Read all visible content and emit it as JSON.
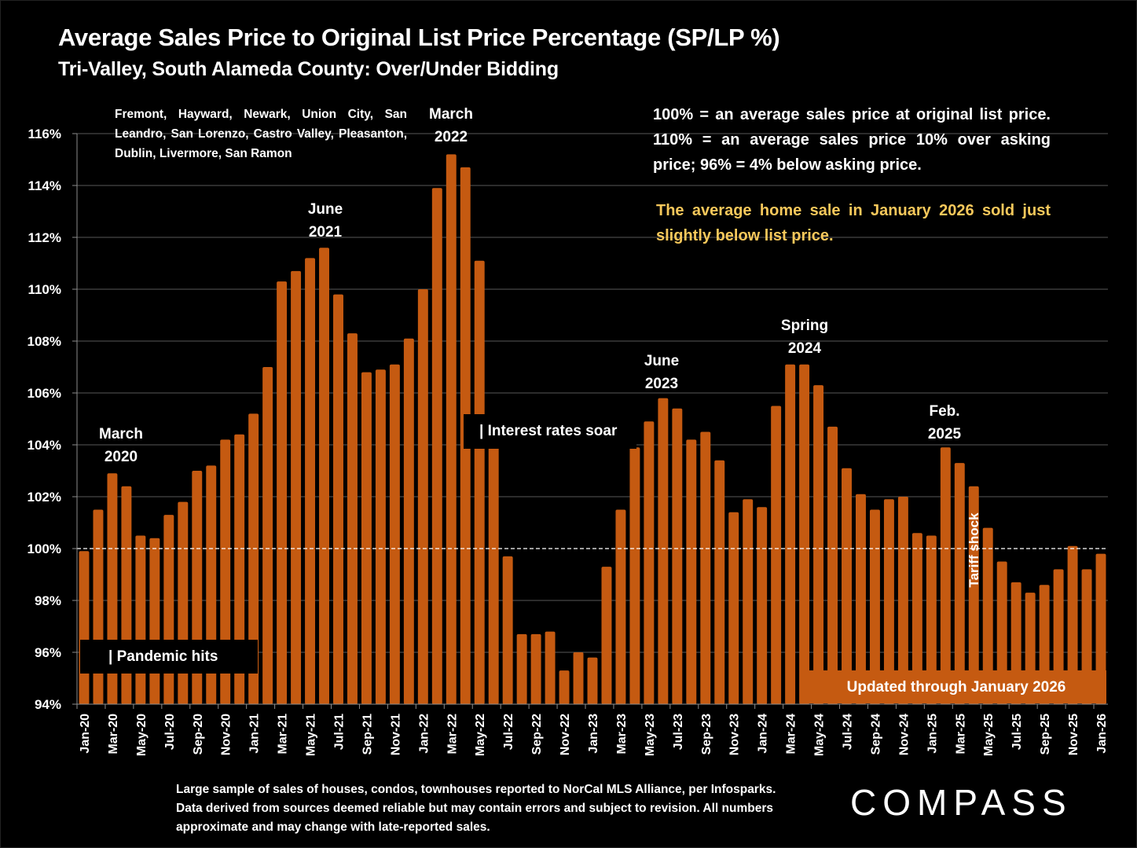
{
  "title": "Average Sales Price to Original List Price Percentage (SP/LP %)",
  "subtitle": "Tri-Valley, South Alameda County:  Over/Under Bidding",
  "cities_note": "Fremont, Hayward, Newark, Union City, San Leandro, San Lorenzo, Castro Valley, Pleasanton, Dublin, Livermore, San Ramon",
  "explanation": "100% = an average sales price at original list price. 110% = an average sales price 10% over asking price; 96% = 4% below asking price.",
  "highlight": "The average home sale in January 2026 sold just slightly below list price.",
  "footer": "Large sample of sales of houses, condos, townhouses reported to NorCal MLS Alliance, per Infosparks. Data derived from sources deemed reliable but may contain errors and subject to revision. All numbers approximate and may change with late-reported sales.",
  "logo": "COMPASS",
  "colors": {
    "bar": "#c55a11",
    "highlight_text": "#f7c85b",
    "background": "#000000",
    "gridline": "#595959"
  },
  "callouts": {
    "march_2020": [
      "March",
      "2020"
    ],
    "june_2021": [
      "June",
      "2021"
    ],
    "march_2022": [
      "March",
      "2022"
    ],
    "june_2023": [
      "June",
      "2023"
    ],
    "spring_2024": [
      "Spring",
      "2024"
    ],
    "feb_2025": [
      "Feb.",
      "2025"
    ]
  },
  "events": {
    "pandemic": "| Pandemic hits",
    "interest_rates": "| Interest rates soar",
    "tariff": "Tariff shock",
    "updated": "Updated through January 2026"
  },
  "chart_data": {
    "type": "bar",
    "title": "Average Sales Price to Original List Price Percentage (SP/LP %)",
    "xlabel": "",
    "ylabel": "",
    "ylim": [
      94,
      116
    ],
    "yticks": [
      94,
      96,
      98,
      100,
      102,
      104,
      106,
      108,
      110,
      112,
      114,
      116
    ],
    "ytick_format": "percent",
    "reference_line": 100,
    "grid": true,
    "legend": "none",
    "categories": [
      "Jan-20",
      "Feb-20",
      "Mar-20",
      "Apr-20",
      "May-20",
      "Jun-20",
      "Jul-20",
      "Aug-20",
      "Sep-20",
      "Oct-20",
      "Nov-20",
      "Dec-20",
      "Jan-21",
      "Feb-21",
      "Mar-21",
      "Apr-21",
      "May-21",
      "Jun-21",
      "Jul-21",
      "Aug-21",
      "Sep-21",
      "Oct-21",
      "Nov-21",
      "Dec-21",
      "Jan-22",
      "Feb-22",
      "Mar-22",
      "Apr-22",
      "May-22",
      "Jun-22",
      "Jul-22",
      "Aug-22",
      "Sep-22",
      "Oct-22",
      "Nov-22",
      "Dec-22",
      "Jan-23",
      "Feb-23",
      "Mar-23",
      "Apr-23",
      "May-23",
      "Jun-23",
      "Jul-23",
      "Aug-23",
      "Sep-23",
      "Oct-23",
      "Nov-23",
      "Dec-23",
      "Jan-24",
      "Feb-24",
      "Mar-24",
      "Apr-24",
      "May-24",
      "Jun-24",
      "Jul-24",
      "Aug-24",
      "Sep-24",
      "Oct-24",
      "Nov-24",
      "Dec-24",
      "Jan-25",
      "Feb-25",
      "Mar-25",
      "Apr-25",
      "May-25",
      "Jun-25",
      "Jul-25",
      "Aug-25",
      "Sep-25",
      "Oct-25",
      "Nov-25",
      "Dec-25",
      "Jan-26"
    ],
    "values": [
      99.9,
      101.5,
      102.9,
      102.4,
      100.5,
      100.4,
      101.3,
      101.8,
      103.0,
      103.2,
      104.2,
      104.4,
      105.2,
      107.0,
      110.3,
      110.7,
      111.2,
      111.6,
      109.8,
      108.3,
      106.8,
      106.9,
      107.1,
      108.1,
      110.0,
      113.9,
      115.2,
      114.7,
      111.1,
      104.0,
      99.7,
      96.7,
      96.7,
      96.8,
      95.3,
      96.0,
      95.8,
      99.3,
      101.5,
      103.9,
      104.9,
      105.8,
      105.4,
      104.2,
      104.5,
      103.4,
      101.4,
      101.9,
      101.6,
      105.5,
      107.1,
      107.1,
      106.3,
      104.7,
      103.1,
      102.1,
      101.5,
      101.9,
      102.0,
      100.6,
      100.5,
      103.9,
      103.3,
      102.4,
      100.8,
      99.5,
      98.7,
      98.3,
      98.6,
      99.2,
      100.1,
      99.2,
      99.8
    ],
    "shown_tick_labels": [
      "Jan-20",
      "Mar-20",
      "May-20",
      "Jul-20",
      "Sep-20",
      "Nov-20",
      "Jan-21",
      "Mar-21",
      "May-21",
      "Jul-21",
      "Sep-21",
      "Nov-21",
      "Jan-22",
      "Mar-22",
      "May-22",
      "Jul-22",
      "Sep-22",
      "Nov-22",
      "Jan-23",
      "Mar-23",
      "May-23",
      "Jul-23",
      "Sep-23",
      "Nov-23",
      "Jan-24",
      "Mar-24",
      "May-24",
      "Jul-24",
      "Sep-24",
      "Nov-24",
      "Jan-25",
      "Mar-25",
      "May-25",
      "Jul-25",
      "Sep-25",
      "Nov-25",
      "Jan-26"
    ]
  }
}
